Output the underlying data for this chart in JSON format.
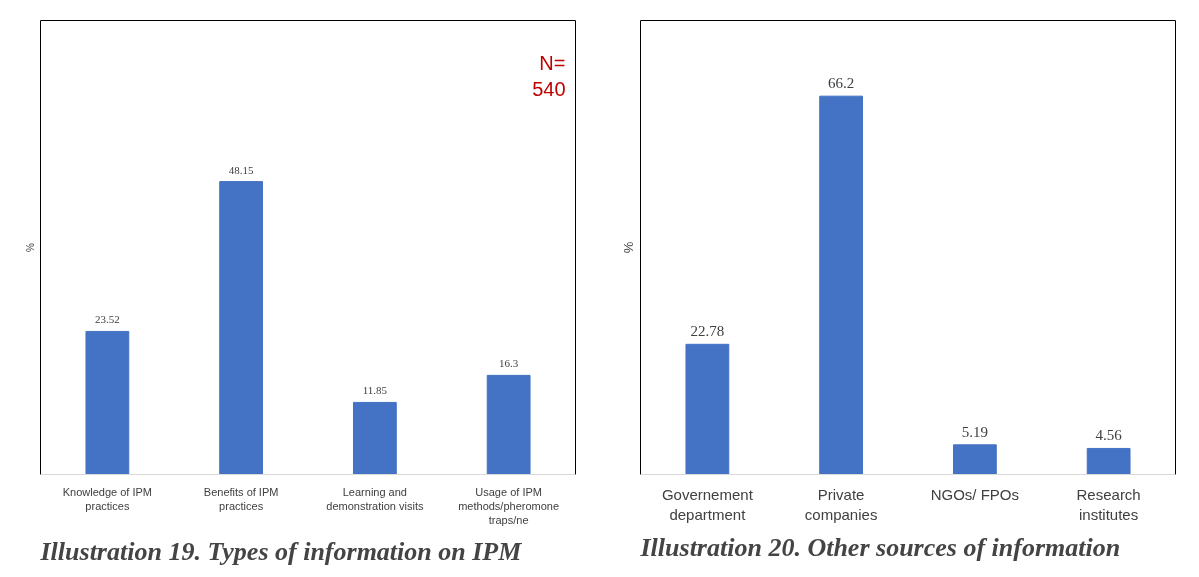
{
  "chart_data": [
    {
      "type": "bar",
      "title": "Illustration 19. Types of information on IPM",
      "ylabel": "%",
      "categories": [
        "Knowledge of IPM practices",
        "Benefits of IPM practices",
        "Learning and demonstration visits",
        "Usage of IPM methods/pheromone traps/ne"
      ],
      "values": [
        23.52,
        48.15,
        11.85,
        16.3
      ],
      "color": "#4472c4",
      "data_labels": true,
      "grid": false,
      "annotations": [
        "N= 540"
      ]
    },
    {
      "type": "bar",
      "title": "Illustration 20. Other sources of information",
      "ylabel": "%",
      "categories": [
        "Governement department",
        "Private companies",
        "NGOs/ FPOs",
        "Research institutes"
      ],
      "values": [
        22.78,
        66.2,
        5.19,
        4.56
      ],
      "color": "#4472c4",
      "data_labels": true,
      "grid": false
    }
  ]
}
